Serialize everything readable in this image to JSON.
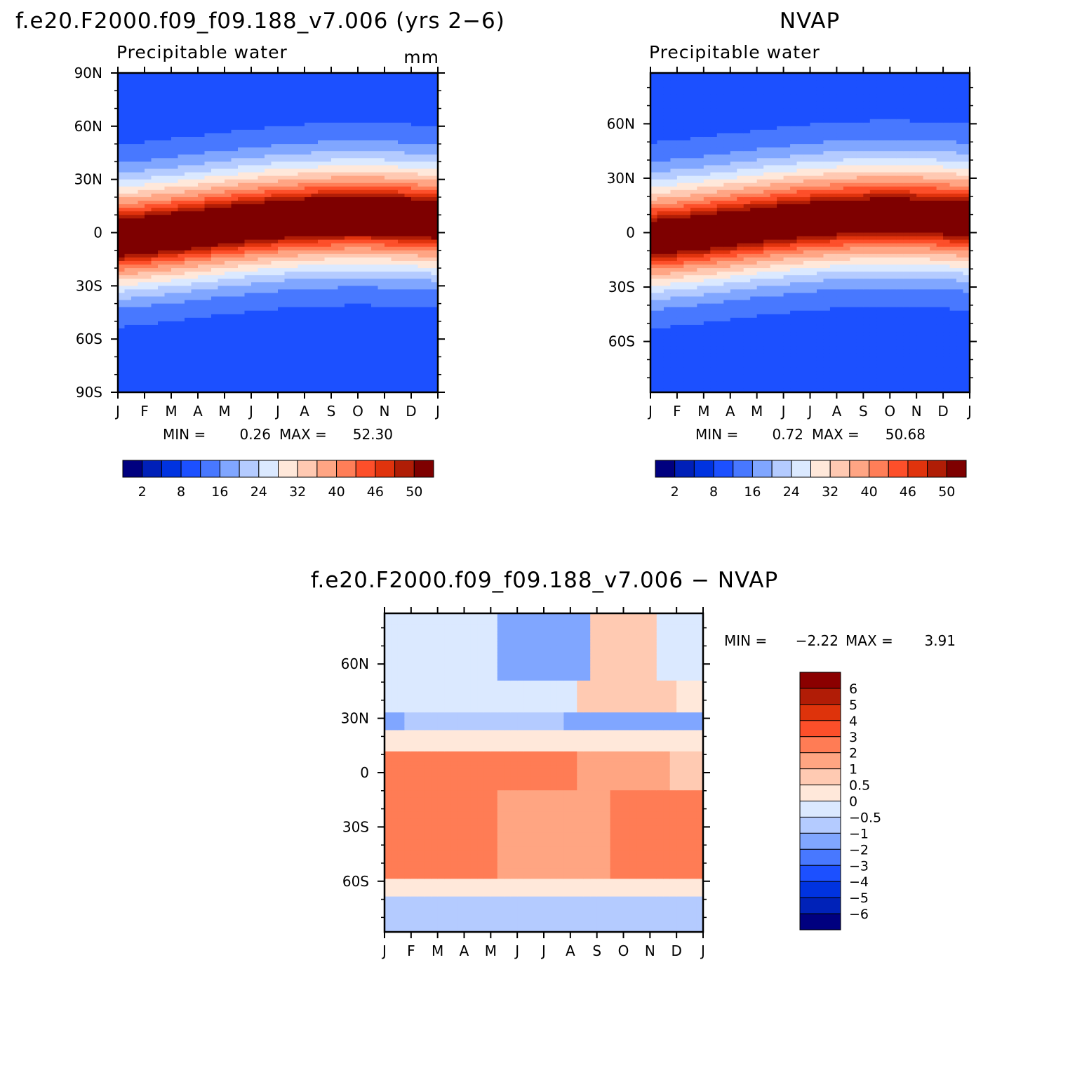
{
  "panels": [
    {
      "title": "f.e20.F2000.f09_f09.188_v7.006 (yrs 2−6)",
      "subtitle": "Precipitable water",
      "units": "mm",
      "stats": {
        "min_label": "MIN =",
        "min": "0.26",
        "max_label": "MAX =",
        "max": "52.30"
      },
      "y_ticks": [
        "90N",
        "60N",
        "30N",
        "0",
        "30S",
        "60S",
        "90S"
      ]
    },
    {
      "title": "NVAP",
      "subtitle": "Precipitable water",
      "units": "",
      "stats": {
        "min_label": "MIN =",
        "min": "0.72",
        "max_label": "MAX =",
        "max": "50.68"
      },
      "y_ticks": [
        "60N",
        "30N",
        "0",
        "30S",
        "60S"
      ]
    },
    {
      "title": "f.e20.F2000.f09_f09.188_v7.006 − NVAP",
      "subtitle": "",
      "units": "",
      "stats": {
        "min_label": "MIN =",
        "min": "−2.22",
        "max_label": "MAX =",
        "max": "3.91"
      },
      "y_ticks": [
        "60N",
        "30N",
        "0",
        "30S",
        "60S"
      ]
    }
  ],
  "month_labels": [
    "J",
    "F",
    "M",
    "A",
    "M",
    "J",
    "J",
    "A",
    "S",
    "O",
    "N",
    "D",
    "J"
  ],
  "colorbar_pw": {
    "labels": [
      "2",
      "8",
      "16",
      "24",
      "32",
      "40",
      "46",
      "50"
    ],
    "colors": [
      "#00007f",
      "#0020b8",
      "#0033e0",
      "#1c50ff",
      "#4878ff",
      "#80a6ff",
      "#b4cbff",
      "#dbe9ff",
      "#ffe8da",
      "#ffc9b2",
      "#ffa584",
      "#ff7e58",
      "#fd4f2a",
      "#e0330d",
      "#b01d06",
      "#7e0000"
    ]
  },
  "colorbar_diff": {
    "labels": [
      "6",
      "5",
      "4",
      "3",
      "2",
      "1",
      "0.5",
      "0",
      "−0.5",
      "−1",
      "−2",
      "−3",
      "−4",
      "−5",
      "−6"
    ],
    "colors": [
      "#8b0000",
      "#b11c06",
      "#de330b",
      "#fc4f2a",
      "#ff7c55",
      "#ffa582",
      "#ffcab2",
      "#ffe8da",
      "#dbe9ff",
      "#b4cbff",
      "#80a6ff",
      "#4878ff",
      "#1c50ff",
      "#0033e0",
      "#0022b8",
      "#00007f"
    ]
  },
  "chart_data": [
    {
      "type": "heatmap",
      "title": "f.e20.F2000.f09_f09.188_v7.006 (yrs 2−6)",
      "subtitle": "Precipitable water",
      "units": "mm",
      "x": [
        "J",
        "F",
        "M",
        "A",
        "M",
        "J",
        "J",
        "A",
        "S",
        "O",
        "N",
        "D",
        "J"
      ],
      "y_ticks": [
        "90N",
        "60N",
        "30N",
        "0",
        "30S",
        "60S",
        "90S"
      ],
      "ylim": [
        -90,
        90
      ],
      "contour_levels": [
        2,
        5,
        8,
        12,
        16,
        20,
        24,
        28,
        32,
        36,
        40,
        43,
        46,
        48,
        50
      ],
      "min": 0.26,
      "max": 52.3
    },
    {
      "type": "heatmap",
      "title": "NVAP",
      "subtitle": "Precipitable water",
      "x": [
        "J",
        "F",
        "M",
        "A",
        "M",
        "J",
        "J",
        "A",
        "S",
        "O",
        "N",
        "D",
        "J"
      ],
      "y_ticks": [
        "60N",
        "30N",
        "0",
        "30S",
        "60S"
      ],
      "ylim": [
        -90,
        90
      ],
      "contour_levels": [
        2,
        5,
        8,
        12,
        16,
        20,
        24,
        28,
        32,
        36,
        40,
        43,
        46,
        48,
        50
      ],
      "min": 0.72,
      "max": 50.68
    },
    {
      "type": "heatmap",
      "title": "f.e20.F2000.f09_f09.188_v7.006 − NVAP",
      "x": [
        "J",
        "F",
        "M",
        "A",
        "M",
        "J",
        "J",
        "A",
        "S",
        "O",
        "N",
        "D",
        "J"
      ],
      "y_ticks": [
        "60N",
        "30N",
        "0",
        "30S",
        "60S"
      ],
      "ylim": [
        -90,
        90
      ],
      "contour_levels": [
        -6,
        -5,
        -4,
        -3,
        -2,
        -1,
        -0.5,
        0,
        0.5,
        1,
        2,
        3,
        4,
        5,
        6
      ],
      "min": -2.22,
      "max": 3.91
    }
  ]
}
